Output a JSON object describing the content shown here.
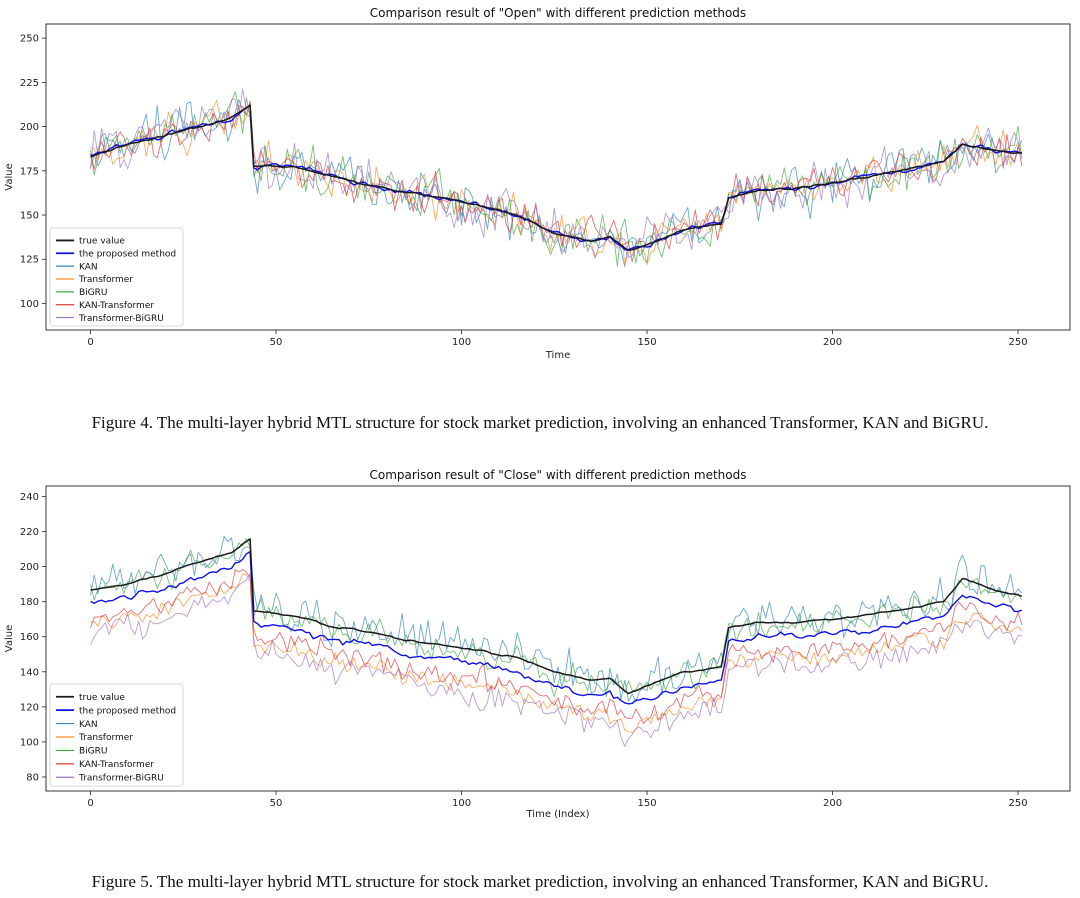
{
  "chart_data": [
    {
      "type": "line",
      "title": "Comparison result of \"Open\" with different prediction methods",
      "xlabel": "Time",
      "ylabel": "Value",
      "xlim": [
        -12,
        264
      ],
      "ylim": [
        85,
        258
      ],
      "xticks": [
        0,
        50,
        100,
        150,
        200,
        250
      ],
      "yticks": [
        100,
        125,
        150,
        175,
        200,
        225,
        250
      ],
      "legend_position": "lower-left",
      "n_points": 252,
      "true_value_anchors": [
        [
          0,
          183
        ],
        [
          10,
          190
        ],
        [
          20,
          195
        ],
        [
          30,
          200
        ],
        [
          38,
          205
        ],
        [
          43,
          212
        ],
        [
          44,
          178
        ],
        [
          55,
          177
        ],
        [
          65,
          172
        ],
        [
          75,
          167
        ],
        [
          85,
          163
        ],
        [
          95,
          160
        ],
        [
          105,
          155
        ],
        [
          115,
          150
        ],
        [
          125,
          140
        ],
        [
          135,
          135
        ],
        [
          140,
          138
        ],
        [
          145,
          130
        ],
        [
          150,
          133
        ],
        [
          160,
          142
        ],
        [
          170,
          145
        ],
        [
          172,
          160
        ],
        [
          180,
          164
        ],
        [
          190,
          165
        ],
        [
          200,
          168
        ],
        [
          210,
          172
        ],
        [
          220,
          176
        ],
        [
          230,
          180
        ],
        [
          235,
          190
        ],
        [
          245,
          186
        ],
        [
          251,
          185
        ]
      ],
      "series": [
        {
          "name": "true value",
          "color": "#1a1a1a",
          "width": 1.5,
          "noise": 1.5,
          "bias": 0,
          "opacity": 1
        },
        {
          "name": "the proposed method",
          "color": "#1010e6",
          "width": 1.4,
          "noise": 4.5,
          "bias": 0,
          "opacity": 1
        },
        {
          "name": "KAN",
          "color": "#1f77b4",
          "width": 0.9,
          "noise": 24,
          "bias": 0,
          "opacity": 0.65
        },
        {
          "name": "Transformer",
          "color": "#ff7f0e",
          "width": 0.9,
          "noise": 20,
          "bias": 0,
          "opacity": 0.65
        },
        {
          "name": "BiGRU",
          "color": "#2ca02c",
          "width": 0.9,
          "noise": 21,
          "bias": 0,
          "opacity": 0.65
        },
        {
          "name": "KAN-Transformer",
          "color": "#d62728",
          "width": 0.9,
          "noise": 20,
          "bias": 0,
          "opacity": 0.65
        },
        {
          "name": "Transformer-BiGRU",
          "color": "#9467bd",
          "width": 0.9,
          "noise": 22,
          "bias": 0,
          "opacity": 0.65
        }
      ]
    },
    {
      "type": "line",
      "title": "Comparison result of \"Close\" with different prediction methods",
      "xlabel": "Time (Index)",
      "ylabel": "Value",
      "xlim": [
        -12,
        264
      ],
      "ylim": [
        72,
        246
      ],
      "xticks": [
        0,
        50,
        100,
        150,
        200,
        250
      ],
      "yticks": [
        80,
        100,
        120,
        140,
        160,
        180,
        200,
        220,
        240
      ],
      "legend_position": "lower-left",
      "n_points": 252,
      "true_value_anchors": [
        [
          0,
          187
        ],
        [
          10,
          190
        ],
        [
          20,
          196
        ],
        [
          30,
          203
        ],
        [
          38,
          208
        ],
        [
          43,
          216
        ],
        [
          44,
          175
        ],
        [
          55,
          172
        ],
        [
          65,
          166
        ],
        [
          75,
          163
        ],
        [
          85,
          158
        ],
        [
          95,
          155
        ],
        [
          105,
          152
        ],
        [
          115,
          148
        ],
        [
          125,
          140
        ],
        [
          135,
          135
        ],
        [
          140,
          136
        ],
        [
          145,
          128
        ],
        [
          150,
          132
        ],
        [
          160,
          140
        ],
        [
          170,
          143
        ],
        [
          172,
          165
        ],
        [
          180,
          168
        ],
        [
          190,
          168
        ],
        [
          200,
          170
        ],
        [
          210,
          173
        ],
        [
          220,
          176
        ],
        [
          230,
          180
        ],
        [
          235,
          193
        ],
        [
          245,
          186
        ],
        [
          251,
          183
        ]
      ],
      "series": [
        {
          "name": "true value",
          "color": "#1a1a1a",
          "width": 1.5,
          "noise": 1.5,
          "bias": 0,
          "opacity": 1
        },
        {
          "name": "the proposed method",
          "color": "#1010e6",
          "width": 1.4,
          "noise": 6,
          "bias": -8,
          "opacity": 1
        },
        {
          "name": "KAN",
          "color": "#1f77b4",
          "width": 0.9,
          "noise": 20,
          "bias": 2,
          "opacity": 0.65
        },
        {
          "name": "Transformer",
          "color": "#ff7f0e",
          "width": 0.9,
          "noise": 10,
          "bias": -20,
          "opacity": 0.65
        },
        {
          "name": "BiGRU",
          "color": "#2ca02c",
          "width": 0.9,
          "noise": 14,
          "bias": -2,
          "opacity": 0.65
        },
        {
          "name": "KAN-Transformer",
          "color": "#d62728",
          "width": 0.9,
          "noise": 11,
          "bias": -16,
          "opacity": 0.65
        },
        {
          "name": "Transformer-BiGRU",
          "color": "#9467bd",
          "width": 0.9,
          "noise": 13,
          "bias": -24,
          "opacity": 0.65
        }
      ]
    }
  ],
  "captions": {
    "figure4": "Figure 4. The multi-layer hybrid MTL structure for stock market prediction, involving an enhanced Transformer, KAN and BiGRU.",
    "figure5": "Figure 5. The multi-layer hybrid MTL structure for stock market prediction, involving an enhanced Transformer, KAN and BiGRU."
  }
}
